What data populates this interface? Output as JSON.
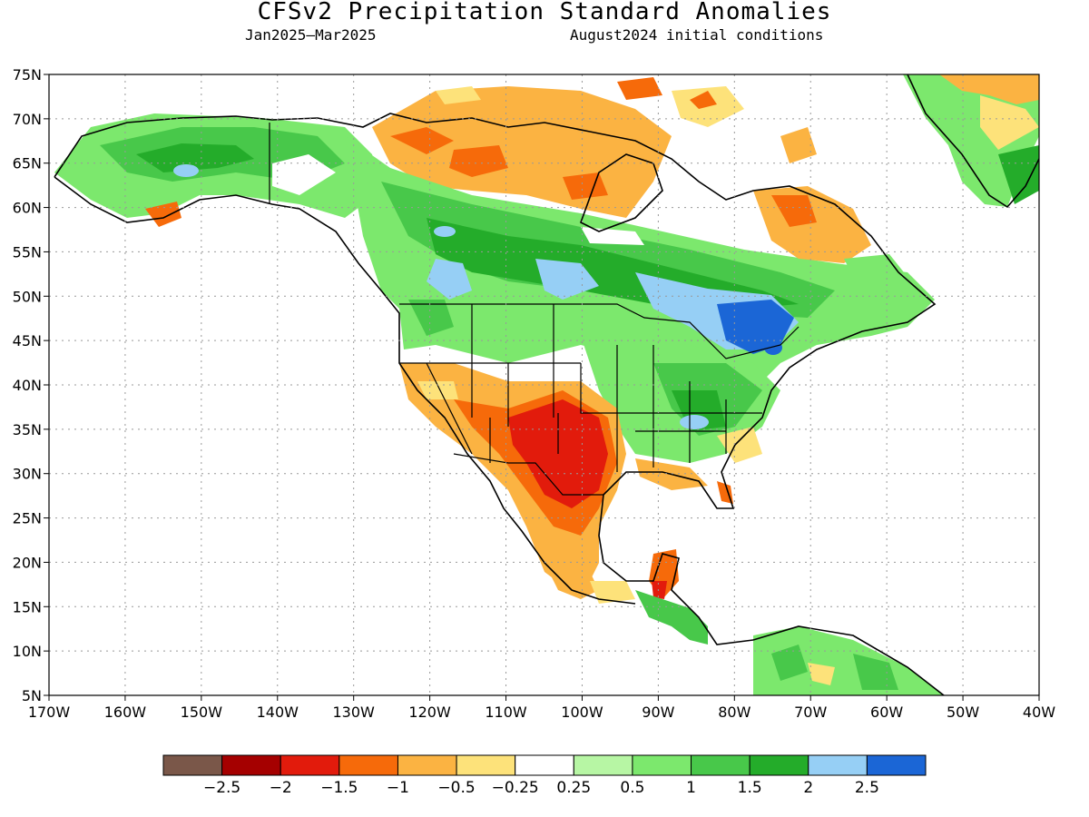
{
  "header": {
    "title": "CFSv2 Precipitation Standard Anomalies",
    "period": "Jan2025–Mar2025",
    "init": "August2024 initial conditions"
  },
  "map": {
    "lon_range": [
      -170,
      -40
    ],
    "lat_range": [
      5,
      75
    ],
    "lat_labels": [
      "75N",
      "70N",
      "65N",
      "60N",
      "55N",
      "50N",
      "45N",
      "40N",
      "35N",
      "30N",
      "25N",
      "20N",
      "15N",
      "10N",
      "5N"
    ],
    "lon_labels": [
      "170W",
      "160W",
      "150W",
      "140W",
      "130W",
      "120W",
      "110W",
      "100W",
      "90W",
      "80W",
      "70W",
      "60W",
      "50W",
      "40W"
    ],
    "grid": "dotted"
  },
  "legend": {
    "colors": [
      "#7a5749",
      "#a50000",
      "#e21b0c",
      "#f66a0a",
      "#fbb342",
      "#fde27a",
      "#ffffff",
      "#b7f6a4",
      "#7ce86d",
      "#48c84a",
      "#24ac2a",
      "#96cff5",
      "#1b66d6"
    ],
    "labels": [
      "−2.5",
      "−2",
      "−1.5",
      "−1",
      "−0.5",
      "−0.25",
      "0.25",
      "0.5",
      "1",
      "1.5",
      "2",
      "2.5"
    ]
  }
}
